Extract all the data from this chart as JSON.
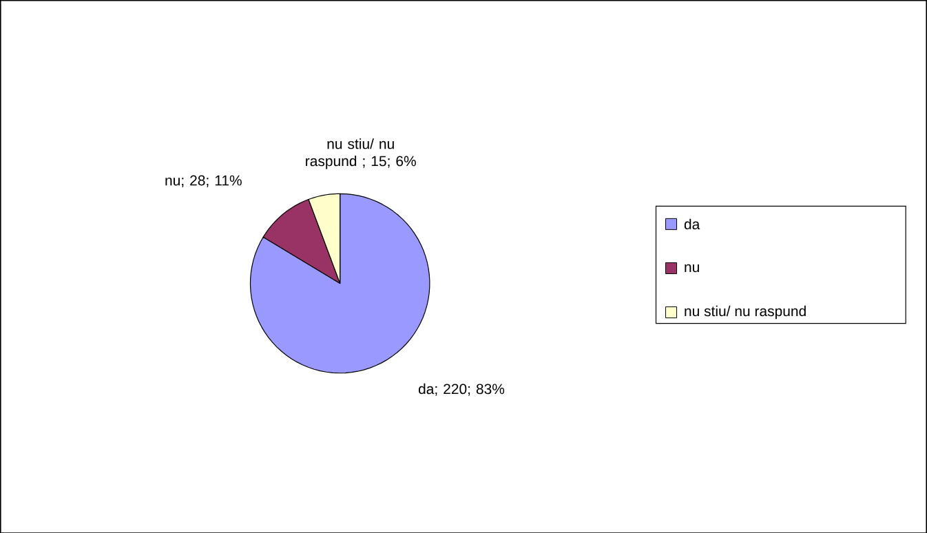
{
  "chart_data": {
    "type": "pie",
    "categories": [
      "da",
      "nu",
      "nu stiu/ nu raspund"
    ],
    "values": [
      220,
      28,
      15
    ],
    "colors": [
      "#9999ff",
      "#993366",
      "#ffffcc"
    ],
    "value_labels": [
      "da; 220; 83%",
      "nu; 28; 11%",
      "nu stiu/ nu raspund ; 15; 6%"
    ],
    "legend": "right"
  }
}
